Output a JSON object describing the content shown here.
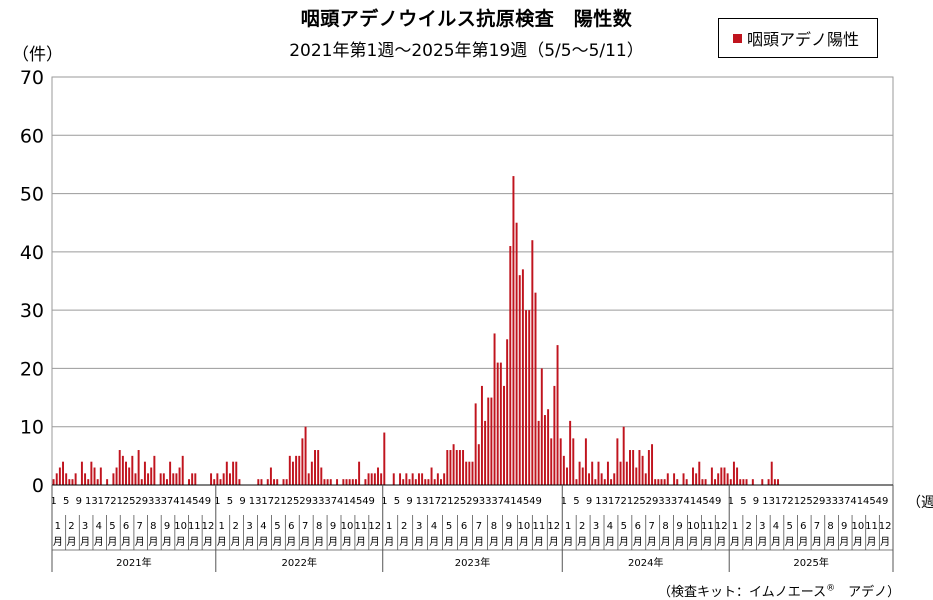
{
  "chart_data": {
    "type": "bar",
    "title": "咽頭アデノウイルス抗原検査　陽性数",
    "subtitle": "2021年第1週〜2025年第19週（5/5〜5/11）",
    "ylabel": "（件）",
    "xlabel": "（週）",
    "ylim": [
      0,
      70
    ],
    "yticks": [
      0,
      10,
      20,
      30,
      40,
      50,
      60,
      70
    ],
    "grid": true,
    "legend_position": "top-right",
    "series": [
      {
        "name": "咽頭アデノ陽性",
        "color": "#c0141e",
        "years": [
          {
            "year": "2021年",
            "values": [
              1,
              2,
              3,
              4,
              2,
              1,
              1,
              2,
              0,
              4,
              2,
              1,
              4,
              3,
              1,
              3,
              0,
              1,
              0,
              2,
              3,
              6,
              5,
              4,
              3,
              5,
              2,
              6,
              1,
              4,
              2,
              3,
              5,
              0,
              2,
              2,
              1,
              4,
              2,
              2,
              3,
              5,
              0,
              1,
              2,
              2,
              0,
              0,
              0,
              0,
              2,
              1
            ]
          },
          {
            "year": "2022年",
            "values": [
              2,
              1,
              2,
              4,
              2,
              4,
              4,
              1,
              0,
              0,
              0,
              0,
              0,
              1,
              1,
              0,
              1,
              3,
              1,
              1,
              0,
              1,
              1,
              5,
              4,
              5,
              5,
              8,
              10,
              2,
              4,
              6,
              6,
              3,
              1,
              1,
              1,
              0,
              1,
              0,
              1,
              1,
              1,
              1,
              1,
              4,
              0,
              1,
              2,
              2,
              2,
              3,
              2
            ]
          },
          {
            "year": "2023年",
            "values": [
              9,
              0,
              0,
              2,
              0,
              2,
              1,
              2,
              1,
              2,
              1,
              2,
              2,
              1,
              1,
              3,
              1,
              2,
              1,
              2,
              6,
              6,
              7,
              6,
              6,
              6,
              4,
              4,
              4,
              14,
              7,
              17,
              11,
              15,
              15,
              26,
              21,
              21,
              17,
              25,
              41,
              53,
              45,
              36,
              37,
              30,
              30,
              42,
              33,
              11,
              20,
              12,
              13,
              8,
              17,
              24,
              8
            ]
          },
          {
            "year": "2024年",
            "values": [
              5,
              3,
              11,
              8,
              1,
              4,
              3,
              8,
              2,
              4,
              1,
              4,
              2,
              1,
              4,
              1,
              2,
              8,
              4,
              10,
              4,
              6,
              6,
              3,
              6,
              5,
              2,
              6,
              7,
              1,
              1,
              1,
              1,
              2,
              0,
              2,
              1,
              0,
              2,
              1,
              0,
              3,
              2,
              4,
              1,
              1,
              0,
              3,
              1,
              2,
              3,
              3,
              2
            ]
          },
          {
            "year": "2025年",
            "values": [
              1,
              4,
              3,
              1,
              1,
              1,
              0,
              1,
              0,
              0,
              1,
              0,
              1,
              4,
              1,
              1,
              0,
              0,
              0,
              0,
              0,
              0,
              0,
              0,
              0,
              0,
              0,
              0,
              0,
              0,
              0,
              0,
              0,
              0,
              0,
              0,
              0,
              0,
              0,
              0,
              0,
              0,
              0,
              0,
              0,
              0,
              0,
              0,
              0,
              0,
              0,
              0
            ]
          }
        ]
      }
    ],
    "week_ticks": [
      "1",
      "5",
      "9",
      "13",
      "17",
      "21",
      "25",
      "29",
      "33",
      "37",
      "41",
      "45",
      "49"
    ],
    "month_labels": [
      "1",
      "2",
      "3",
      "4",
      "5",
      "6",
      "7",
      "8",
      "9",
      "10",
      "11",
      "12"
    ],
    "month_suffix": "月"
  },
  "source_note": "（検査キット：イムノエース",
  "source_note_mark": "®",
  "source_note_end": "　アデノ）"
}
